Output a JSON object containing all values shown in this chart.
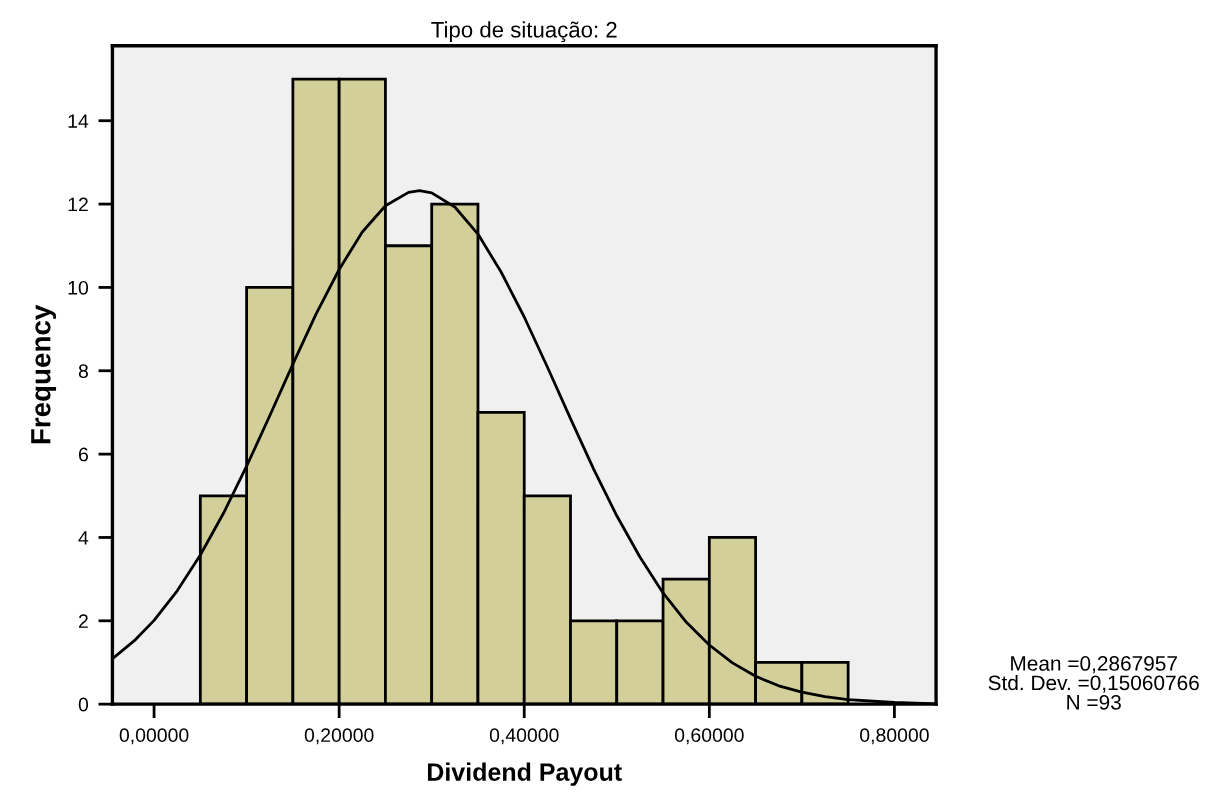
{
  "chart_data": {
    "type": "histogram",
    "title": "Tipo de situação: 2",
    "xlabel": "Dividend Payout",
    "ylabel": "Frequency",
    "bins": [
      0.05,
      0.1,
      0.15,
      0.2,
      0.25,
      0.3,
      0.35,
      0.4,
      0.45,
      0.5,
      0.55,
      0.6,
      0.65,
      0.7,
      0.75
    ],
    "values": [
      5,
      10,
      15,
      15,
      11,
      12,
      7,
      5,
      2,
      2,
      3,
      4,
      1,
      1
    ],
    "color": "#d3cf9a",
    "series": [
      {
        "type": "line",
        "color": "#000000",
        "x": [
          -0.045,
          -0.02,
          0.0,
          0.025,
          0.05,
          0.075,
          0.1,
          0.125,
          0.15,
          0.175,
          0.2,
          0.225,
          0.25,
          0.275,
          0.2868,
          0.3,
          0.325,
          0.35,
          0.375,
          0.4,
          0.425,
          0.45,
          0.475,
          0.5,
          0.525,
          0.55,
          0.575,
          0.6,
          0.625,
          0.65,
          0.675,
          0.7,
          0.725,
          0.75,
          0.8,
          0.845
        ],
        "values": [
          1.09,
          1.55,
          2.01,
          2.72,
          3.58,
          4.58,
          5.71,
          6.92,
          8.16,
          9.36,
          10.43,
          11.33,
          11.96,
          12.28,
          12.32,
          12.27,
          11.93,
          11.28,
          10.37,
          9.29,
          8.09,
          6.85,
          5.64,
          4.52,
          3.53,
          2.67,
          1.97,
          1.42,
          0.99,
          0.67,
          0.44,
          0.29,
          0.18,
          0.11,
          0.04,
          0.01
        ]
      }
    ],
    "xlim": [
      -0.045,
      0.845
    ],
    "xticks": [
      {
        "value": 0,
        "label": "0,00000"
      },
      {
        "value": 0.2,
        "label": "0,20000"
      },
      {
        "value": 0.4,
        "label": "0,40000"
      },
      {
        "value": 0.6,
        "label": "0,60000"
      },
      {
        "value": 0.8,
        "label": "0,80000"
      }
    ],
    "ylim": [
      0,
      15.8
    ],
    "yticks": [
      0,
      2,
      4,
      6,
      8,
      10,
      12,
      14
    ],
    "grid": false,
    "annotations": [
      "Mean =0,2867957\nStd. Dev. =0,15060766\nN =93"
    ]
  }
}
